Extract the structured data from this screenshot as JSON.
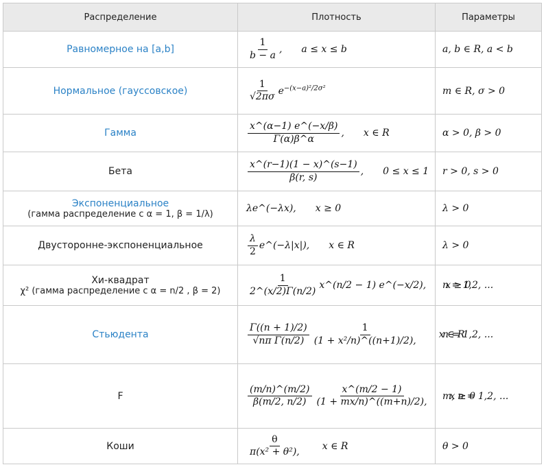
{
  "header": {
    "distribution": "Распределение",
    "density": "Плотность",
    "parameters": "Параметры"
  },
  "rows": [
    {
      "name": "Равномерное на [a,b]",
      "linked": true,
      "note": "",
      "support": "a ≤ x ≤ b",
      "params": "a, b ∈ R,      a < b"
    },
    {
      "name": "Нормальное (гауссовское)",
      "linked": true,
      "note": "",
      "support": "",
      "params": "m ∈ R,      σ > 0"
    },
    {
      "name": "Гамма",
      "linked": true,
      "note": "",
      "support": "x ∈ R",
      "params": "α > 0,      β > 0"
    },
    {
      "name": "Бета",
      "linked": false,
      "note": "",
      "support": "0 ≤ x ≤ 1",
      "params": "r > 0,      s > 0"
    },
    {
      "name": "Экспоненциальное",
      "linked": true,
      "note": "(гамма распределение с α = 1, β = 1/λ)",
      "support": "x ≥ 0",
      "params": "λ > 0"
    },
    {
      "name": "Двусторонне-экспоненциальное",
      "linked": false,
      "note": "",
      "support": "x ∈ R",
      "params": "λ > 0"
    },
    {
      "name": "Хи-квадрат",
      "linked": false,
      "note": "χ² (гамма распределение с α = n/2 , β = 2)",
      "support": "x ≥ 0",
      "params": "n = 1,2, ..."
    },
    {
      "name": "Стьюдента",
      "linked": true,
      "note": "",
      "support": "x ∈ R",
      "params": "n = 1,2, ..."
    },
    {
      "name": "F",
      "linked": false,
      "note": "",
      "support": "x ≥ 0",
      "params": "m, n = 1,2, ..."
    },
    {
      "name": "Коши",
      "linked": false,
      "note": "",
      "support": "x ∈ R",
      "params": "θ > 0"
    }
  ],
  "formulas": {
    "uniform": {
      "num": "1",
      "den": "b − a"
    },
    "normal": {
      "num": "1",
      "den": "√2πσ",
      "exp": "−(x−a)²/2σ²"
    },
    "gamma": {
      "num": "x^(α−1) e^(−x/β)",
      "den": "Γ(α)β^α"
    },
    "beta": {
      "num": "x^(r−1)(1 − x)^(s−1)",
      "den": "β(r, s)"
    },
    "exponential": "λe^(−λx),",
    "laplace": {
      "num": "λ",
      "den": "2",
      "exp": "e^(−λ|x|),"
    },
    "chi2": {
      "num": "1",
      "den": "2^(x/2)Γ(n/2)",
      "tail": "x^(n/2 − 1) e^(−x/2),"
    },
    "student": {
      "num1": "Γ((n + 1)/2)",
      "den1": "√nπ Γ(n/2)",
      "num2": "1",
      "den2": "(1 + x²/n)^((n+1)/2),"
    },
    "fisher": {
      "num1": "(m/n)^(m/2)",
      "den1": "β(m/2, n/2)",
      "num2": "x^(m/2 − 1)",
      "den2": "(1 + mx/n)^((m+n)/2),"
    },
    "cauchy": {
      "num": "θ",
      "den": "π(x² + θ²),"
    }
  }
}
